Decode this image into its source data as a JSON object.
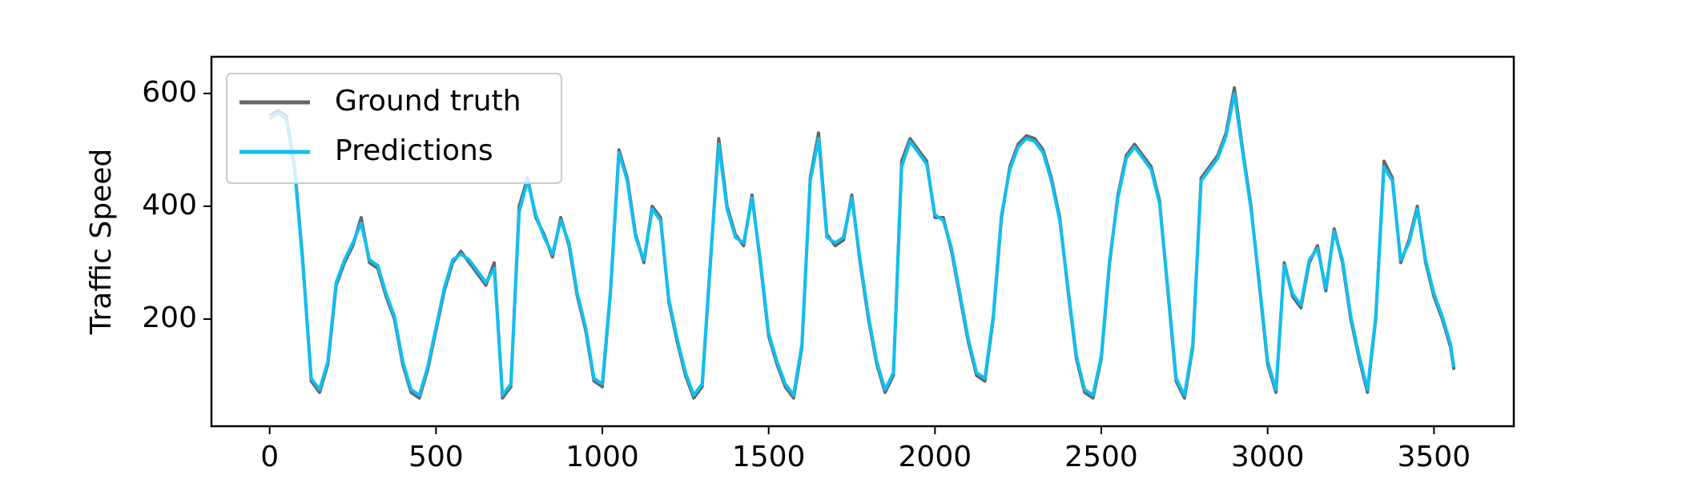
{
  "chart_data": {
    "type": "line",
    "ylabel": "Traffic Speed",
    "xlim": [
      -175,
      3740
    ],
    "ylim": [
      10,
      665
    ],
    "xticks": [
      0,
      500,
      1000,
      1500,
      2000,
      2500,
      3000,
      3500
    ],
    "yticks": [
      200,
      400,
      600
    ],
    "legend": "upper left",
    "x": [
      0,
      25,
      50,
      75,
      100,
      125,
      150,
      175,
      200,
      225,
      250,
      275,
      300,
      325,
      350,
      375,
      400,
      425,
      450,
      475,
      500,
      525,
      550,
      575,
      600,
      625,
      650,
      675,
      700,
      725,
      750,
      775,
      800,
      825,
      850,
      875,
      900,
      925,
      950,
      975,
      1000,
      1025,
      1050,
      1075,
      1100,
      1125,
      1150,
      1175,
      1200,
      1225,
      1250,
      1275,
      1300,
      1325,
      1350,
      1375,
      1400,
      1425,
      1450,
      1475,
      1500,
      1525,
      1550,
      1575,
      1600,
      1625,
      1650,
      1675,
      1700,
      1725,
      1750,
      1775,
      1800,
      1825,
      1850,
      1875,
      1900,
      1925,
      1950,
      1975,
      2000,
      2025,
      2050,
      2075,
      2100,
      2125,
      2150,
      2175,
      2200,
      2225,
      2250,
      2275,
      2300,
      2325,
      2350,
      2375,
      2400,
      2425,
      2450,
      2475,
      2500,
      2525,
      2550,
      2575,
      2600,
      2625,
      2650,
      2675,
      2700,
      2725,
      2750,
      2775,
      2800,
      2825,
      2850,
      2875,
      2900,
      2925,
      2950,
      2975,
      3000,
      3025,
      3050,
      3075,
      3100,
      3125,
      3150,
      3175,
      3200,
      3225,
      3250,
      3275,
      3300,
      3325,
      3350,
      3375,
      3400,
      3425,
      3450,
      3475,
      3500,
      3525,
      3550,
      3560
    ],
    "series": [
      {
        "name": "Ground truth",
        "color": "#666666",
        "values": [
          560,
          570,
          560,
          470,
          300,
          90,
          70,
          120,
          260,
          300,
          330,
          380,
          300,
          290,
          240,
          200,
          120,
          70,
          60,
          110,
          180,
          250,
          300,
          320,
          300,
          280,
          260,
          300,
          60,
          80,
          400,
          450,
          380,
          350,
          310,
          380,
          330,
          240,
          180,
          90,
          80,
          250,
          500,
          450,
          350,
          300,
          400,
          380,
          230,
          160,
          100,
          60,
          80,
          300,
          520,
          400,
          350,
          330,
          420,
          300,
          170,
          120,
          80,
          60,
          150,
          450,
          530,
          350,
          330,
          340,
          420,
          300,
          200,
          120,
          70,
          100,
          480,
          520,
          500,
          480,
          380,
          380,
          320,
          240,
          160,
          100,
          90,
          200,
          380,
          470,
          510,
          525,
          520,
          500,
          450,
          380,
          250,
          130,
          70,
          60,
          130,
          300,
          420,
          490,
          510,
          490,
          470,
          410,
          250,
          90,
          60,
          150,
          450,
          470,
          490,
          530,
          610,
          500,
          400,
          260,
          120,
          70,
          300,
          240,
          220,
          300,
          330,
          250,
          360,
          300,
          200,
          130,
          70,
          200,
          480,
          450,
          300,
          340,
          400,
          300,
          240,
          200,
          150,
          110
        ]
      },
      {
        "name": "Predictions",
        "color": "#10bff2",
        "values": [
          555,
          565,
          555,
          465,
          295,
          95,
          75,
          125,
          265,
          305,
          335,
          370,
          305,
          295,
          245,
          205,
          125,
          75,
          65,
          115,
          185,
          255,
          305,
          315,
          305,
          285,
          265,
          290,
          65,
          85,
          390,
          445,
          385,
          345,
          315,
          375,
          335,
          245,
          185,
          95,
          85,
          255,
          495,
          445,
          345,
          305,
          395,
          375,
          235,
          165,
          105,
          65,
          85,
          305,
          510,
          395,
          345,
          335,
          415,
          305,
          175,
          125,
          85,
          65,
          155,
          445,
          520,
          345,
          335,
          345,
          415,
          305,
          205,
          125,
          75,
          105,
          470,
          515,
          495,
          475,
          385,
          375,
          325,
          245,
          165,
          105,
          95,
          205,
          385,
          465,
          505,
          520,
          515,
          495,
          445,
          375,
          255,
          135,
          75,
          65,
          135,
          305,
          415,
          485,
          505,
          485,
          465,
          405,
          255,
          95,
          65,
          155,
          445,
          465,
          485,
          525,
          600,
          495,
          395,
          265,
          125,
          75,
          295,
          245,
          225,
          305,
          325,
          255,
          355,
          305,
          205,
          135,
          75,
          205,
          470,
          445,
          305,
          335,
          395,
          305,
          245,
          205,
          155,
          115
        ]
      }
    ]
  }
}
